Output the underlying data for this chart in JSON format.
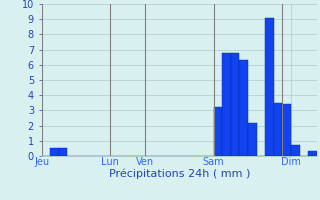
{
  "xlabel": "Précipitations 24h ( mm )",
  "ylim": [
    0,
    10
  ],
  "yticks": [
    0,
    1,
    2,
    3,
    4,
    5,
    6,
    7,
    8,
    9,
    10
  ],
  "background_color": "#d8f0f0",
  "bar_color": "#1144ee",
  "bar_edge_color": "#0022aa",
  "values": [
    0,
    0.55,
    0.55,
    0,
    0,
    0,
    0,
    0,
    0,
    0,
    0,
    0,
    0,
    0,
    0,
    0,
    0,
    0,
    0,
    0,
    3.2,
    6.8,
    6.8,
    6.3,
    2.2,
    0,
    9.1,
    3.5,
    3.4,
    0.7,
    0,
    0.35
  ],
  "n_bars": 32,
  "day_labels": [
    "Jeu",
    "Lun",
    "Ven",
    "Sam",
    "Dim"
  ],
  "day_tick_positions": [
    0,
    8,
    12,
    20,
    29
  ],
  "vline_positions": [
    0,
    8,
    12,
    20,
    28
  ],
  "grid_color": "#b0c8c8",
  "vline_color": "#808080",
  "tick_label_color": "#3366ff",
  "xlabel_color": "#2244bb",
  "ytick_color": "#2244bb"
}
